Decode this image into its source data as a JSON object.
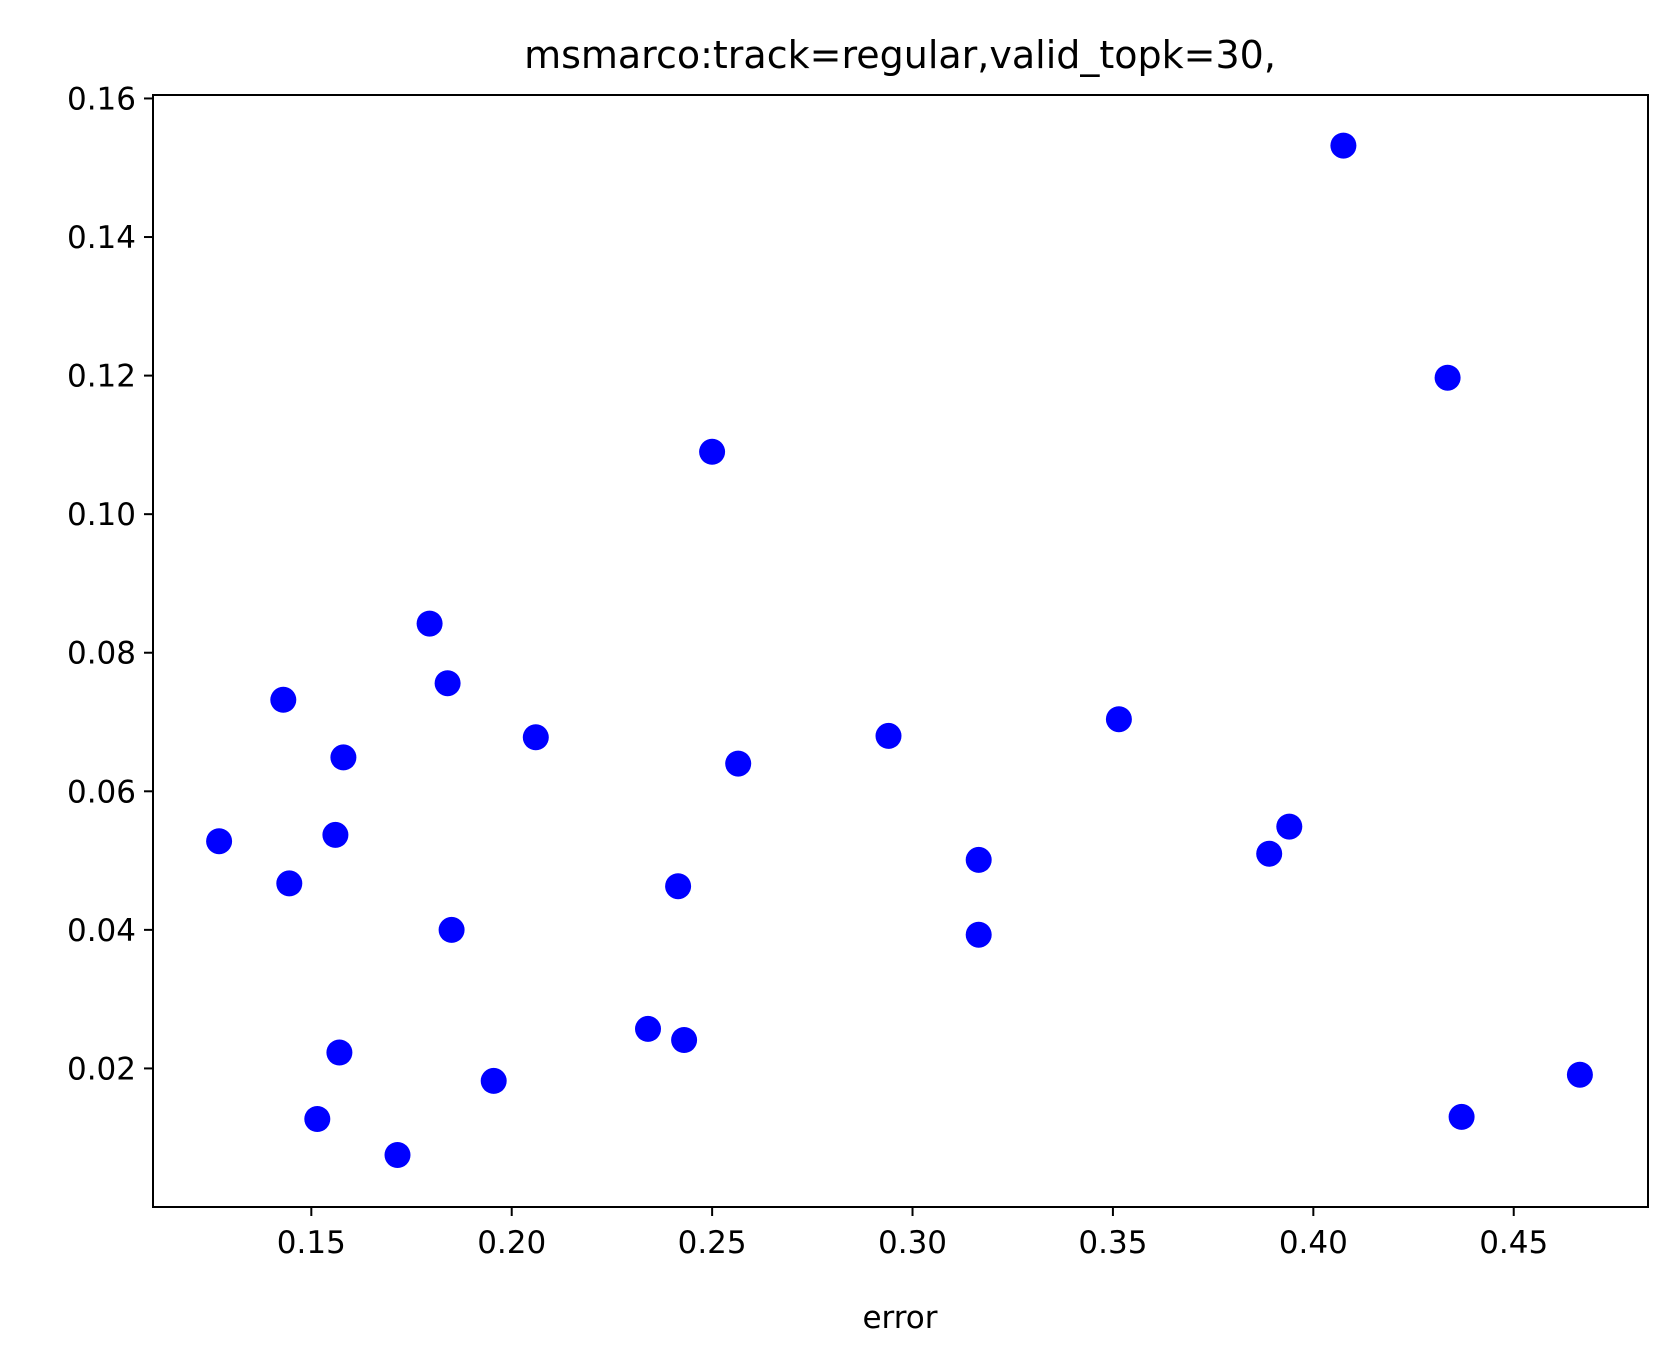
{
  "chart_data": {
    "type": "scatter",
    "title": "msmarco:track=regular,valid_topk=30,",
    "xlabel": "error",
    "ylabel": "",
    "xlim": [
      0.1105,
      0.4835
    ],
    "ylim": [
      0.0,
      0.1605
    ],
    "x_ticks": [
      0.15,
      0.2,
      0.25,
      0.3,
      0.35,
      0.4,
      0.45
    ],
    "x_tick_labels": [
      "0.15",
      "0.20",
      "0.25",
      "0.30",
      "0.35",
      "0.40",
      "0.45"
    ],
    "y_ticks": [
      0.02,
      0.04,
      0.06,
      0.08,
      0.1,
      0.12,
      0.14,
      0.16
    ],
    "y_tick_labels": [
      "0.02",
      "0.04",
      "0.06",
      "0.08",
      "0.10",
      "0.12",
      "0.14",
      "0.16"
    ],
    "grid": false,
    "marker_color": "#0000ff",
    "points": [
      {
        "x": 0.127,
        "y": 0.0528
      },
      {
        "x": 0.143,
        "y": 0.0732
      },
      {
        "x": 0.1445,
        "y": 0.0467
      },
      {
        "x": 0.1515,
        "y": 0.0127
      },
      {
        "x": 0.156,
        "y": 0.0537
      },
      {
        "x": 0.157,
        "y": 0.0223
      },
      {
        "x": 0.158,
        "y": 0.0649
      },
      {
        "x": 0.1715,
        "y": 0.0075
      },
      {
        "x": 0.1795,
        "y": 0.0842
      },
      {
        "x": 0.184,
        "y": 0.0756
      },
      {
        "x": 0.185,
        "y": 0.04
      },
      {
        "x": 0.1955,
        "y": 0.0182
      },
      {
        "x": 0.206,
        "y": 0.0678
      },
      {
        "x": 0.234,
        "y": 0.0257
      },
      {
        "x": 0.2415,
        "y": 0.0463
      },
      {
        "x": 0.243,
        "y": 0.0241
      },
      {
        "x": 0.25,
        "y": 0.109
      },
      {
        "x": 0.2565,
        "y": 0.064
      },
      {
        "x": 0.294,
        "y": 0.068
      },
      {
        "x": 0.3165,
        "y": 0.0501
      },
      {
        "x": 0.3165,
        "y": 0.0393
      },
      {
        "x": 0.3515,
        "y": 0.0704
      },
      {
        "x": 0.389,
        "y": 0.051
      },
      {
        "x": 0.394,
        "y": 0.0549
      },
      {
        "x": 0.4075,
        "y": 0.1532
      },
      {
        "x": 0.4335,
        "y": 0.1197
      },
      {
        "x": 0.437,
        "y": 0.013
      },
      {
        "x": 0.4665,
        "y": 0.0191
      }
    ]
  }
}
